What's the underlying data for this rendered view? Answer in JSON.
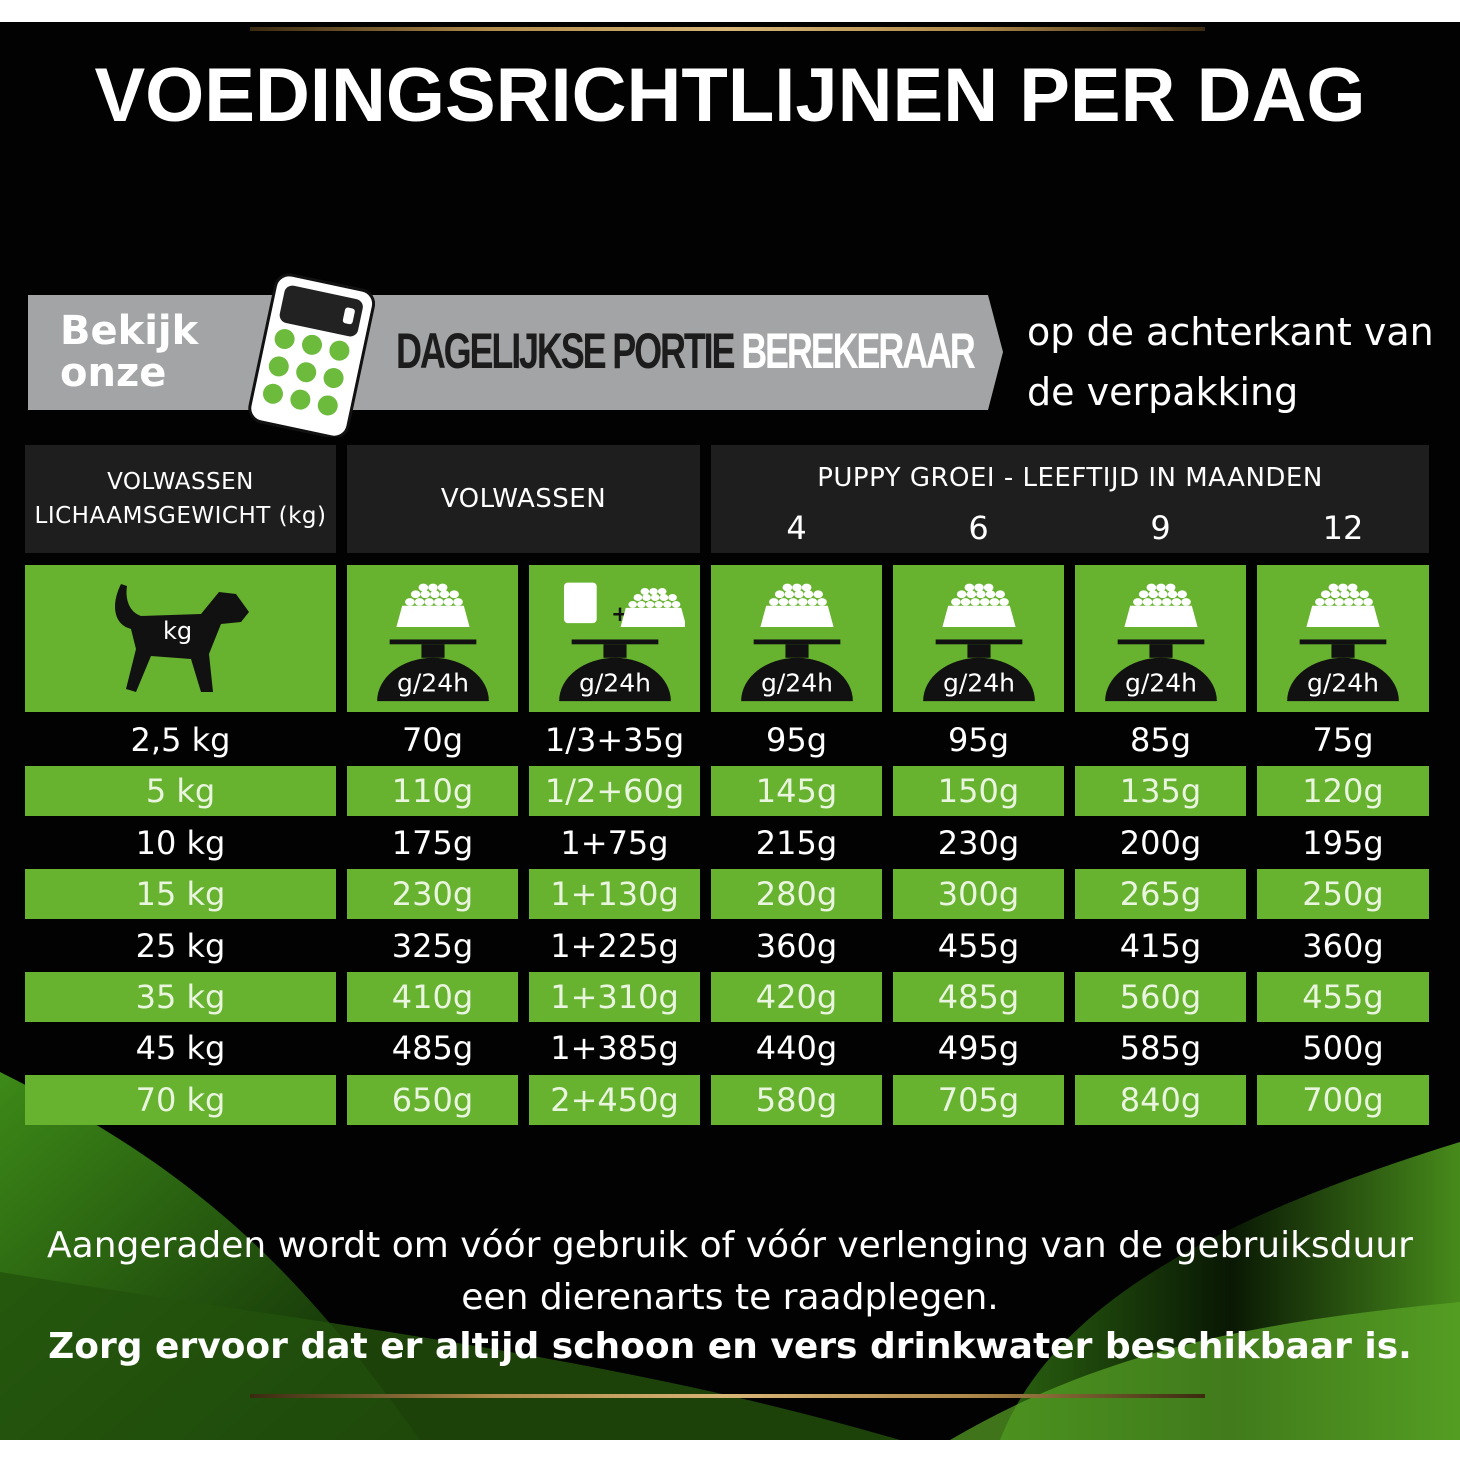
{
  "title": "VOEDINGSRICHTLIJNEN PER DAG",
  "banner": {
    "prefix": "Bekijk onze",
    "prefix_line1": "Bekijk",
    "prefix_line2": "onze",
    "bold": "DAGELIJKSE PORTIE",
    "light": "BEREKERAAR",
    "suffix_line1": "op de achterkant van",
    "suffix_line2": "de verpakking"
  },
  "table": {
    "header_weight": "VOLWASSEN LICHAAMSGEWICHT (kg)",
    "header_weight_l1": "VOLWASSEN",
    "header_weight_l2": "LICHAAMSGEWICHT (kg)",
    "header_adult": "VOLWASSEN",
    "header_puppy": "PUPPY GROEI - LEEFTIJD IN MAANDEN",
    "puppy_months": [
      "4",
      "6",
      "9",
      "12"
    ],
    "icon_unit": "g/24h",
    "icon_kg": "kg",
    "rows": [
      [
        "2,5 kg",
        "70g",
        "1/3+35g",
        "95g",
        "95g",
        "85g",
        "75g"
      ],
      [
        "5 kg",
        "110g",
        "1/2+60g",
        "145g",
        "150g",
        "135g",
        "120g"
      ],
      [
        "10 kg",
        "175g",
        "1+75g",
        "215g",
        "230g",
        "200g",
        "195g"
      ],
      [
        "15 kg",
        "230g",
        "1+130g",
        "280g",
        "300g",
        "265g",
        "250g"
      ],
      [
        "25 kg",
        "325g",
        "1+225g",
        "360g",
        "455g",
        "415g",
        "360g"
      ],
      [
        "35 kg",
        "410g",
        "1+310g",
        "420g",
        "485g",
        "560g",
        "455g"
      ],
      [
        "45 kg",
        "485g",
        "1+385g",
        "440g",
        "495g",
        "585g",
        "500g"
      ],
      [
        "70 kg",
        "650g",
        "2+450g",
        "580g",
        "705g",
        "840g",
        "700g"
      ]
    ]
  },
  "footer": {
    "line1": "Aangeraden wordt om vóór gebruik of vóór verlenging van de gebruiksduur",
    "line2": "een dierenarts te raadplegen.",
    "line3": "Zorg ervoor dat er altijd schoon en vers drinkwater beschikbaar is."
  },
  "colors": {
    "green": "#67b22f",
    "black": "#020202",
    "header": "#1e1e1e",
    "banner_gray": "#a3a4a6",
    "gold": "#c9a766"
  }
}
